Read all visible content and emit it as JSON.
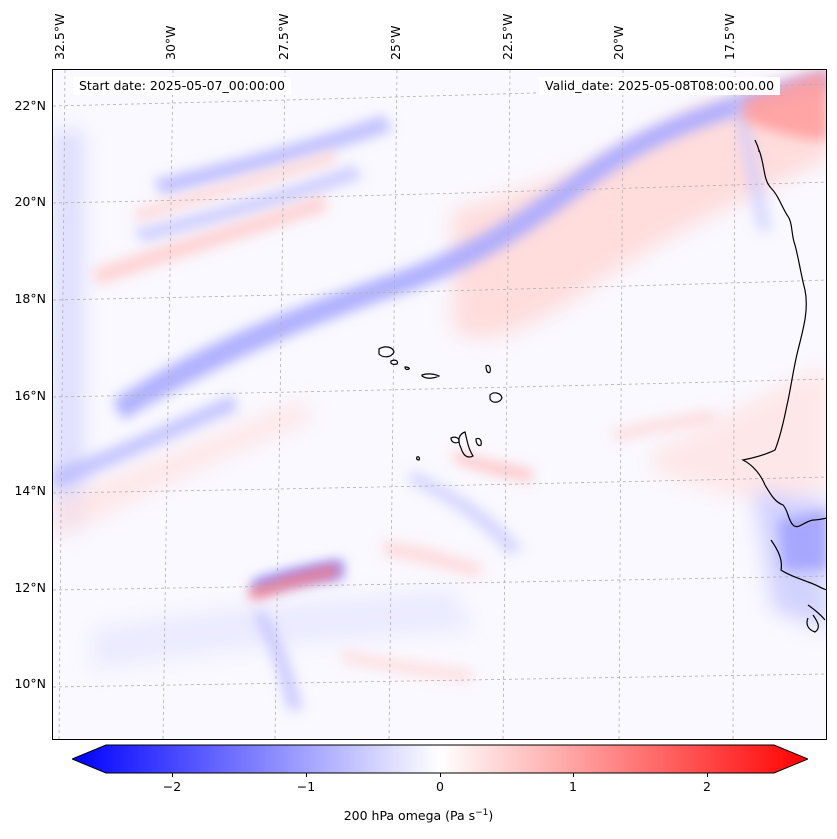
{
  "map": {
    "start_date": "Start date: 2025-05-07_00:00:00",
    "valid_date": "Valid_date: 2025-05-08T08:00:00.00",
    "lon_labels": [
      "32.5°W",
      "30°W",
      "27.5°W",
      "25°W",
      "22.5°W",
      "20°W",
      "17.5°W"
    ],
    "lat_labels": [
      "22°N",
      "20°N",
      "18°N",
      "16°N",
      "14°N",
      "12°N",
      "10°N"
    ],
    "colors": {
      "negative": "#0000ff",
      "positive": "#ff0000",
      "neutral": "#ffffff",
      "coast": "#000000",
      "grid": "#b0b0b0"
    }
  },
  "colorbar": {
    "ticks": [
      "−2",
      "−1",
      "0",
      "1",
      "2"
    ],
    "label_main": "200 hPa omega (Pa s",
    "label_sup": "−1",
    "label_end": ")",
    "range": [
      -2.6,
      2.6
    ]
  }
}
